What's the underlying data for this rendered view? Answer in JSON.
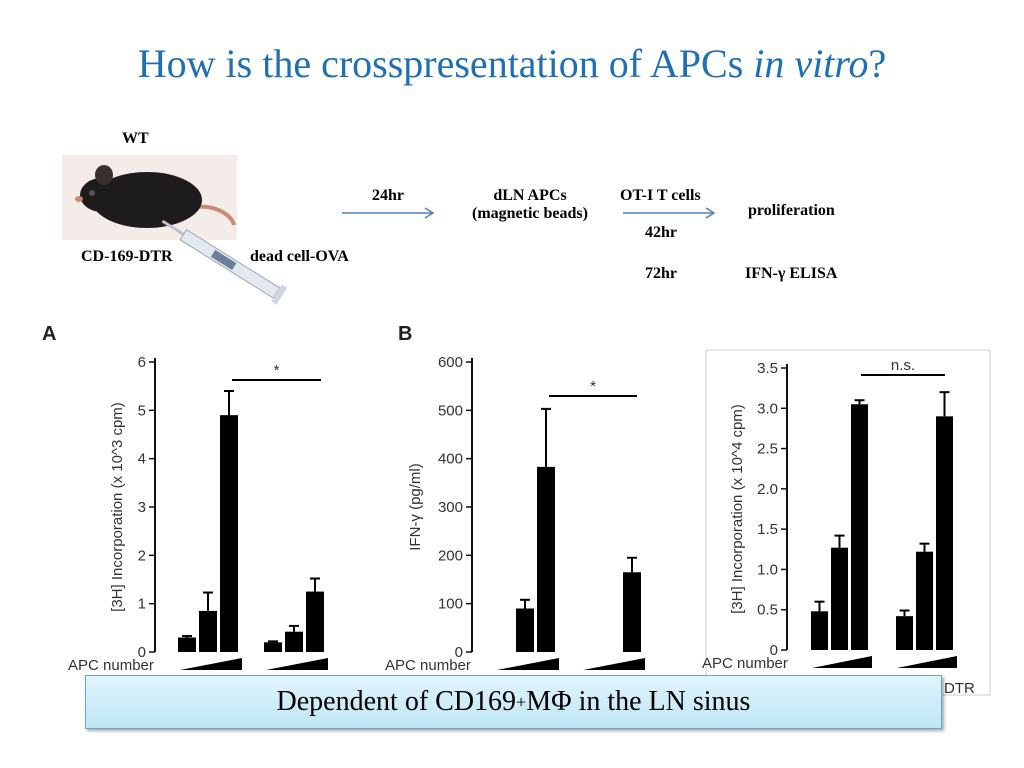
{
  "slide": {
    "title_main": "How is the crosspresentation of APCs ",
    "title_italic": "in vitro",
    "title_end": "?"
  },
  "flow": {
    "wt": "WT",
    "strain": "CD-169-DTR",
    "injection": "dead cell-OVA",
    "time_24": "24hr",
    "apcs_line1": "dLN APCs",
    "apcs_line2": "(magnetic beads)",
    "ot1": "OT-I T cells",
    "time_42": "42hr",
    "time_72": "72hr",
    "proliferation": "proliferation",
    "elisa": "IFN-γ ELISA"
  },
  "callout": {
    "text_before": "Dependent of CD169",
    "superscript": "+",
    "text_after": " MΦ in the LN sinus"
  },
  "chart_data": [
    {
      "panel": "A",
      "type": "bar",
      "ylabel": "[3H] Incorporation (x 10^3 cpm)",
      "ylim": [
        0,
        6
      ],
      "yticks": [
        "0",
        "1",
        "2",
        "3",
        "4",
        "5",
        "6"
      ],
      "xlabel": "APC number",
      "groups": [
        {
          "values": [
            0.3,
            0.85,
            4.9
          ],
          "errors": [
            0.03,
            0.38,
            0.5
          ]
        },
        {
          "values": [
            0.2,
            0.42,
            1.25
          ],
          "errors": [
            0.02,
            0.12,
            0.27
          ]
        }
      ],
      "significance": "*"
    },
    {
      "panel": "B",
      "type": "bar",
      "ylabel": "IFN-γ (pg/ml)",
      "ylim": [
        0,
        600
      ],
      "yticks": [
        "0",
        "100",
        "200",
        "300",
        "400",
        "500",
        "600"
      ],
      "xlabel": "APC number",
      "groups": [
        {
          "values": [
            0,
            90,
            383
          ],
          "errors": [
            0,
            18,
            120
          ]
        },
        {
          "values": [
            0,
            0,
            165
          ],
          "errors": [
            0,
            0,
            30
          ]
        }
      ],
      "significance": "*"
    },
    {
      "panel": "",
      "type": "bar",
      "ylabel": "[3H] Incorporation (x 10^4 cpm)",
      "ylim": [
        0,
        3.5
      ],
      "yticks": [
        "0",
        "0.5",
        "1.0",
        "1.5",
        "2.0",
        "2.5",
        "3.0",
        "3.5"
      ],
      "xlabel": "APC number",
      "groups": [
        {
          "values": [
            0.48,
            1.27,
            3.05
          ],
          "errors": [
            0.12,
            0.15,
            0.05
          ]
        },
        {
          "values": [
            0.42,
            1.22,
            2.9
          ],
          "errors": [
            0.07,
            0.1,
            0.3
          ]
        }
      ],
      "significance": "n.s.",
      "partial_label": "DTR"
    }
  ]
}
